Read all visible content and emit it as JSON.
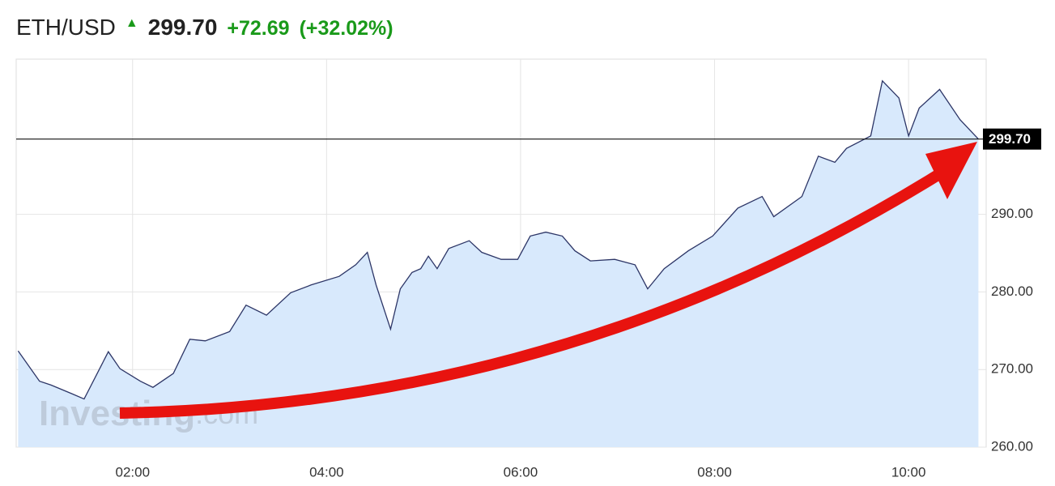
{
  "chart_data": {
    "type": "area",
    "symbol": "ETH/USD",
    "last": {
      "value": 299.7,
      "label": "299.70"
    },
    "change": "+72.69",
    "change_pct": "(+32.02%)",
    "watermark": [
      "Investing",
      ".com"
    ],
    "series": [
      {
        "color": "#2c3566",
        "fill": "#d8e9fc",
        "x": [
          0.82,
          1.04,
          1.16,
          1.37,
          1.5,
          1.75,
          1.87,
          2.08,
          2.21,
          2.42,
          2.59,
          2.75,
          3.0,
          3.17,
          3.38,
          3.63,
          3.84,
          4.13,
          4.3,
          4.42,
          4.51,
          4.66,
          4.76,
          4.88,
          4.97,
          5.05,
          5.14,
          5.26,
          5.47,
          5.6,
          5.8,
          5.97,
          6.1,
          6.26,
          6.43,
          6.56,
          6.72,
          6.97,
          7.18,
          7.31,
          7.48,
          7.73,
          7.98,
          8.24,
          8.49,
          8.61,
          8.9,
          9.07,
          9.24,
          9.36,
          9.61,
          9.73,
          9.9,
          10.0,
          10.11,
          10.32,
          10.53,
          10.72
        ],
        "values": [
          272.4,
          268.5,
          268.0,
          266.9,
          266.2,
          272.3,
          270.1,
          268.5,
          267.7,
          269.5,
          273.9,
          273.7,
          274.9,
          278.3,
          277.0,
          279.9,
          280.9,
          282.0,
          283.5,
          285.1,
          280.9,
          275.2,
          280.4,
          282.5,
          283.0,
          284.6,
          283.0,
          285.6,
          286.6,
          285.1,
          284.2,
          284.2,
          287.2,
          287.7,
          287.2,
          285.3,
          284.0,
          284.2,
          283.5,
          280.4,
          283.0,
          285.3,
          287.2,
          290.8,
          292.3,
          289.7,
          292.3,
          297.5,
          296.7,
          298.5,
          300.1,
          307.2,
          305.0,
          300.1,
          303.7,
          306.1,
          302.2,
          299.7
        ]
      }
    ],
    "xlim": [
      0.8,
      10.8
    ],
    "xticks": [
      {
        "value": 2,
        "label": "02:00"
      },
      {
        "value": 4,
        "label": "04:00"
      },
      {
        "value": 6,
        "label": "06:00"
      },
      {
        "value": 8,
        "label": "08:00"
      },
      {
        "value": 10,
        "label": "10:00"
      }
    ],
    "ylim": [
      260,
      310
    ],
    "yticks": [
      {
        "value": 260,
        "label": "260.00"
      },
      {
        "value": 270,
        "label": "270.00"
      },
      {
        "value": 280,
        "label": "280.00"
      },
      {
        "value": 290,
        "label": "290.00"
      }
    ],
    "grid": true
  }
}
